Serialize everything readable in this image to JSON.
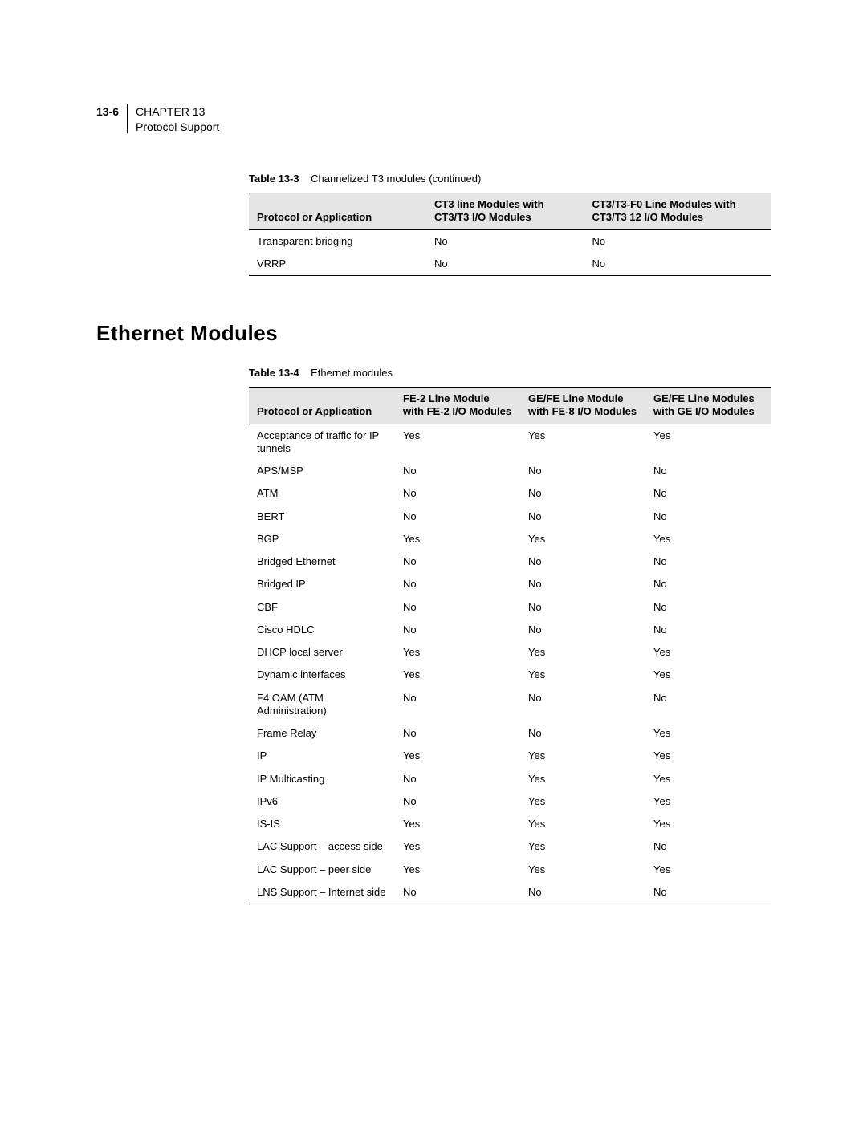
{
  "header": {
    "page_number": "13-6",
    "chapter_label": "CHAPTER 13",
    "chapter_title": "Protocol Support"
  },
  "table1": {
    "caption_prefix": "Table 13-3",
    "caption_text": "Channelized T3 modules (continued)",
    "columns": {
      "col1": "Protocol or Application",
      "col2": "CT3 line Modules with CT3/T3 I/O Modules",
      "col3": "CT3/T3-F0 Line Modules with CT3/T3 12 I/O Modules"
    },
    "rows": [
      {
        "label": "Transparent bridging",
        "v1": "No",
        "v2": "No"
      },
      {
        "label": "VRRP",
        "v1": "No",
        "v2": "No"
      }
    ]
  },
  "section_heading": "Ethernet Modules",
  "table2": {
    "caption_prefix": "Table 13-4",
    "caption_text": "Ethernet modules",
    "columns": {
      "col1": "Protocol or Application",
      "col2": "FE-2 Line Module with FE-2 I/O Modules",
      "col3": "GE/FE Line Module with FE-8 I/O Modules",
      "col4": "GE/FE Line Modules with GE I/O Modules"
    },
    "rows": [
      {
        "label": "Acceptance of traffic for IP tunnels",
        "v1": "Yes",
        "v2": "Yes",
        "v3": "Yes"
      },
      {
        "label": "APS/MSP",
        "v1": "No",
        "v2": "No",
        "v3": "No"
      },
      {
        "label": "ATM",
        "v1": "No",
        "v2": "No",
        "v3": "No"
      },
      {
        "label": "BERT",
        "v1": "No",
        "v2": "No",
        "v3": "No"
      },
      {
        "label": "BGP",
        "v1": "Yes",
        "v2": "Yes",
        "v3": "Yes"
      },
      {
        "label": "Bridged Ethernet",
        "v1": "No",
        "v2": "No",
        "v3": "No"
      },
      {
        "label": "Bridged IP",
        "v1": "No",
        "v2": "No",
        "v3": "No"
      },
      {
        "label": "CBF",
        "v1": "No",
        "v2": "No",
        "v3": "No"
      },
      {
        "label": "Cisco HDLC",
        "v1": "No",
        "v2": "No",
        "v3": "No"
      },
      {
        "label": "DHCP local server",
        "v1": "Yes",
        "v2": "Yes",
        "v3": "Yes"
      },
      {
        "label": "Dynamic interfaces",
        "v1": "Yes",
        "v2": "Yes",
        "v3": "Yes"
      },
      {
        "label": "F4 OAM (ATM Administration)",
        "v1": "No",
        "v2": "No",
        "v3": "No"
      },
      {
        "label": "Frame Relay",
        "v1": "No",
        "v2": "No",
        "v3": "Yes"
      },
      {
        "label": "IP",
        "v1": "Yes",
        "v2": "Yes",
        "v3": "Yes"
      },
      {
        "label": "IP Multicasting",
        "v1": "No",
        "v2": "Yes",
        "v3": "Yes"
      },
      {
        "label": "IPv6",
        "v1": "No",
        "v2": "Yes",
        "v3": "Yes"
      },
      {
        "label": "IS-IS",
        "v1": "Yes",
        "v2": "Yes",
        "v3": "Yes"
      },
      {
        "label": "LAC Support – access side",
        "v1": "Yes",
        "v2": "Yes",
        "v3": "No"
      },
      {
        "label": "LAC Support – peer side",
        "v1": "Yes",
        "v2": "Yes",
        "v3": "Yes"
      },
      {
        "label": "LNS Support – Internet side",
        "v1": "No",
        "v2": "No",
        "v3": "No"
      }
    ]
  }
}
